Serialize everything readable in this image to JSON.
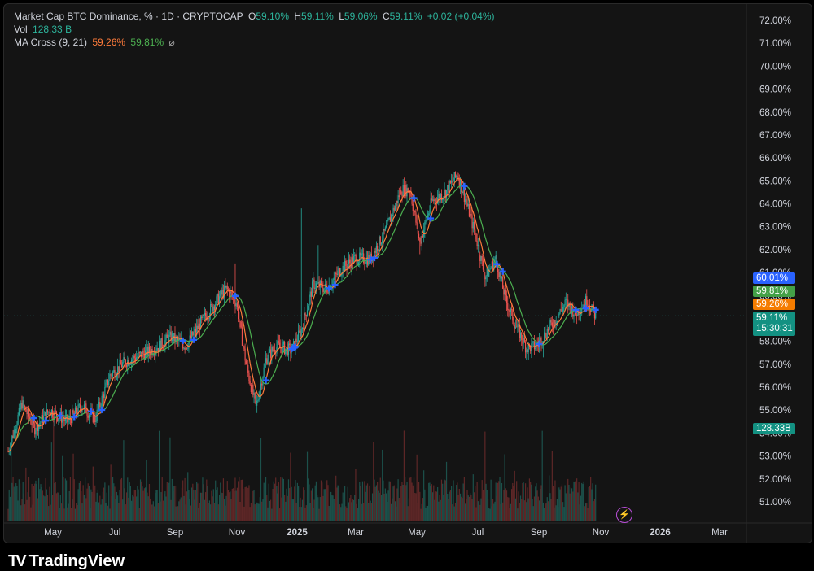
{
  "legend": {
    "symbol": "Market Cap BTC Dominance, % · 1D · CRYPTOCAP",
    "o_label": "O",
    "o_value": "59.10%",
    "h_label": "H",
    "h_value": "59.11%",
    "l_label": "L",
    "l_value": "59.06%",
    "c_label": "C",
    "c_value": "59.11%",
    "change": "+0.02 (+0.04%)",
    "vol_label": "Vol",
    "vol_value": "128.33 B",
    "ma_label": "MA Cross (9, 21)",
    "ma_fast": "59.26%",
    "ma_slow": "59.81%",
    "ma_icon": "⌀"
  },
  "colors": {
    "up": "#26a69a",
    "down": "#ef5350",
    "ma_fast": "#ff7b3a",
    "ma_slow": "#4caf50",
    "cross": "#2962ff",
    "price_line": "#26a69a"
  },
  "badges": {
    "b1": "60.01%",
    "b2": "59.81%",
    "b3": "59.26%",
    "b4_price": "59.11%",
    "b4_time": "15:30:31",
    "vol": "128.33B"
  },
  "branding": {
    "logo": "TV",
    "name": "TradingView"
  },
  "icons": {
    "lightning": "lightning-icon"
  },
  "chart_data": {
    "type": "candlestick",
    "y_ticks": [
      "72.00%",
      "71.00%",
      "70.00%",
      "69.00%",
      "68.00%",
      "67.00%",
      "66.00%",
      "65.00%",
      "64.00%",
      "63.00%",
      "62.00%",
      "61.00%",
      "60.00%",
      "59.00%",
      "58.00%",
      "57.00%",
      "56.00%",
      "55.00%",
      "54.00%",
      "53.00%",
      "52.00%",
      "51.00%"
    ],
    "x_ticks": [
      {
        "label": "May",
        "bold": false
      },
      {
        "label": "Jul",
        "bold": false
      },
      {
        "label": "Sep",
        "bold": false
      },
      {
        "label": "Nov",
        "bold": false
      },
      {
        "label": "2025",
        "bold": true
      },
      {
        "label": "Mar",
        "bold": false
      },
      {
        "label": "May",
        "bold": false
      },
      {
        "label": "Jul",
        "bold": false
      },
      {
        "label": "Sep",
        "bold": false
      },
      {
        "label": "Nov",
        "bold": false
      },
      {
        "label": "2026",
        "bold": true
      },
      {
        "label": "Mar",
        "bold": false
      }
    ],
    "ylim": [
      50.5,
      72.3
    ],
    "x_start": "2024-03-29",
    "x_end": "2025-11-14",
    "close_points": [
      [
        "2024-03-29",
        53.2
      ],
      [
        "2024-04-12",
        55.3
      ],
      [
        "2024-04-25",
        54.2
      ],
      [
        "2024-05-10",
        55.0
      ],
      [
        "2024-05-28",
        54.5
      ],
      [
        "2024-06-12",
        55.2
      ],
      [
        "2024-06-25",
        54.6
      ],
      [
        "2024-07-10",
        56.5
      ],
      [
        "2024-07-25",
        57.1
      ],
      [
        "2024-08-10",
        57.4
      ],
      [
        "2024-08-25",
        57.7
      ],
      [
        "2024-09-10",
        58.2
      ],
      [
        "2024-09-25",
        57.8
      ],
      [
        "2024-10-10",
        58.8
      ],
      [
        "2024-10-25",
        59.7
      ],
      [
        "2024-11-05",
        60.3
      ],
      [
        "2024-11-15",
        59.7
      ],
      [
        "2024-11-25",
        57.0
      ],
      [
        "2024-12-05",
        55.1
      ],
      [
        "2024-12-15",
        57.2
      ],
      [
        "2024-12-25",
        57.8
      ],
      [
        "2025-01-10",
        57.6
      ],
      [
        "2025-01-20",
        58.5
      ],
      [
        "2025-02-01",
        60.5
      ],
      [
        "2025-02-15",
        60.3
      ],
      [
        "2025-02-28",
        61.1
      ],
      [
        "2025-03-15",
        61.6
      ],
      [
        "2025-03-31",
        61.6
      ],
      [
        "2025-04-15",
        62.8
      ],
      [
        "2025-05-01",
        64.6
      ],
      [
        "2025-05-10",
        64.6
      ],
      [
        "2025-05-20",
        62.3
      ],
      [
        "2025-06-01",
        64.1
      ],
      [
        "2025-06-15",
        64.5
      ],
      [
        "2025-06-27",
        65.3
      ],
      [
        "2025-07-05",
        64.2
      ],
      [
        "2025-07-15",
        62.7
      ],
      [
        "2025-07-25",
        60.8
      ],
      [
        "2025-08-05",
        61.6
      ],
      [
        "2025-08-15",
        59.8
      ],
      [
        "2025-08-25",
        58.7
      ],
      [
        "2025-09-05",
        57.7
      ],
      [
        "2025-09-15",
        57.8
      ],
      [
        "2025-09-25",
        58.4
      ],
      [
        "2025-10-05",
        59.0
      ],
      [
        "2025-10-15",
        59.7
      ],
      [
        "2025-10-25",
        59.2
      ],
      [
        "2025-11-05",
        59.8
      ],
      [
        "2025-11-14",
        59.11
      ]
    ],
    "volume_note": "Vol bars, last value 128.33 B",
    "ma_periods": [
      9,
      21
    ]
  }
}
